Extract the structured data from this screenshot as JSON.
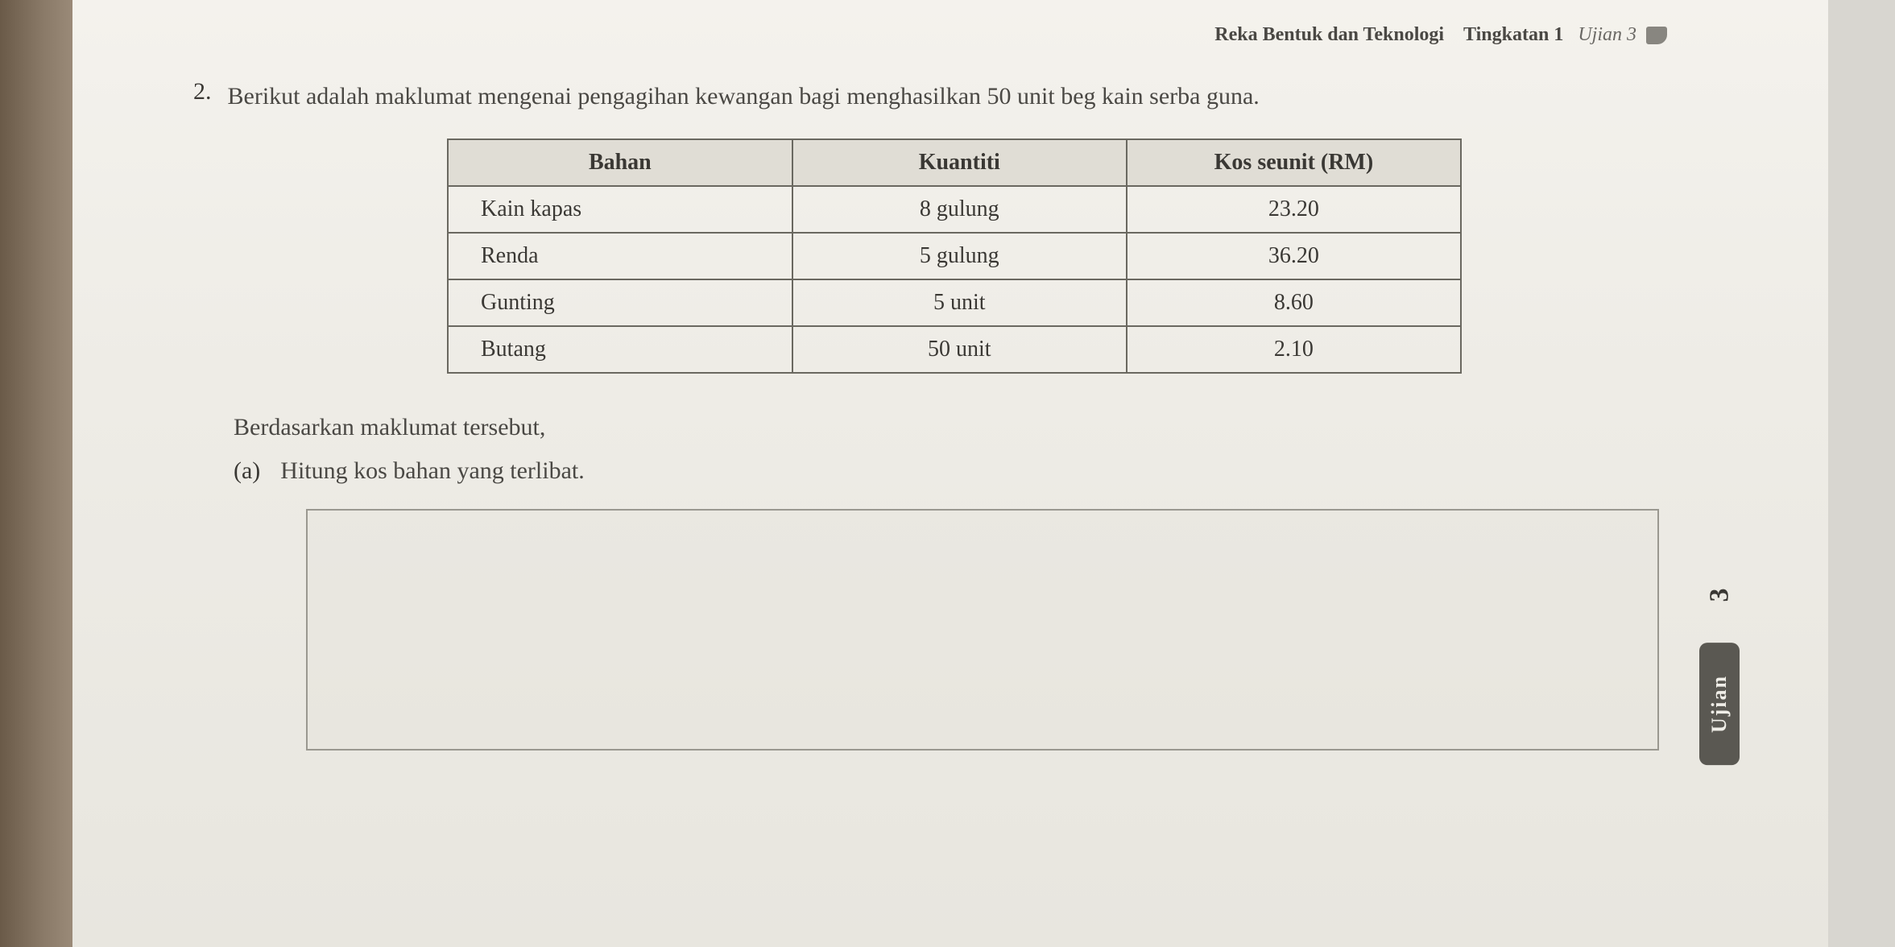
{
  "header": {
    "subject": "Reka Bentuk dan Teknologi",
    "level": "Tingkatan 1",
    "exam": "Ujian 3"
  },
  "question": {
    "number": "2.",
    "text": "Berikut adalah maklumat mengenai pengagihan kewangan bagi menghasilkan 50 unit beg kain serba guna."
  },
  "table": {
    "columns": [
      "Bahan",
      "Kuantiti",
      "Kos seunit (RM)"
    ],
    "rows": [
      [
        "Kain kapas",
        "8 gulung",
        "23.20"
      ],
      [
        "Renda",
        "5 gulung",
        "36.20"
      ],
      [
        "Gunting",
        "5 unit",
        "8.60"
      ],
      [
        "Butang",
        "50 unit",
        "2.10"
      ]
    ],
    "header_bg": "#e0ddd5",
    "border_color": "#6a6860",
    "text_color": "#3a3834",
    "fontsize": 28
  },
  "followup": "Berdasarkan maklumat tersebut,",
  "subquestion": {
    "label": "(a)",
    "text": "Hitung kos bahan yang terlibat."
  },
  "sidetab": {
    "number": "3",
    "label": "Ujian"
  },
  "colors": {
    "page_bg": "#eeece6",
    "body_bg": "#d8d6d0",
    "text_main": "#4a4844",
    "text_dark": "#3a3834",
    "tab_bg": "#5a5852",
    "tab_fg": "#f0eee8"
  }
}
